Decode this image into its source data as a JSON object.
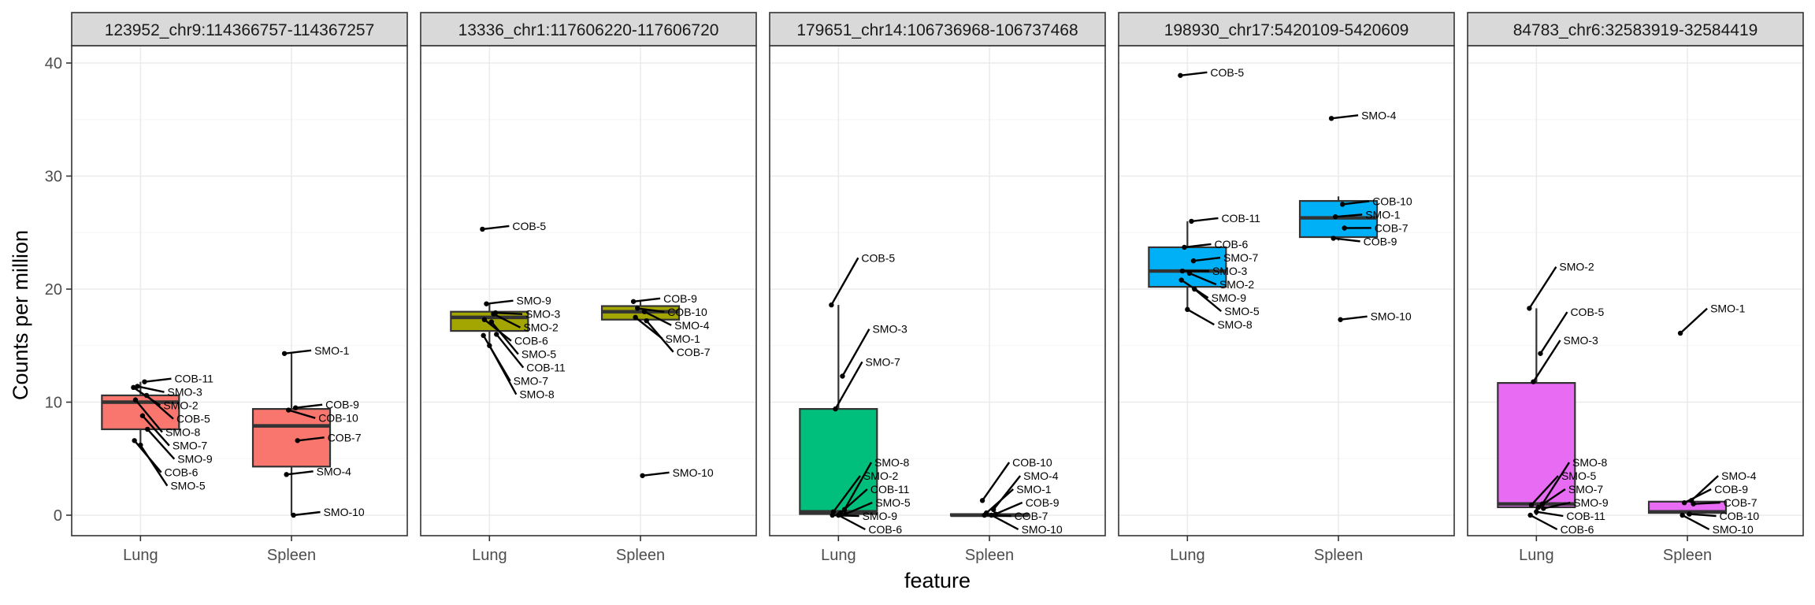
{
  "chart_data": {
    "type": "box",
    "xlabel": "feature",
    "ylabel": "Counts per million",
    "ylim": [
      -1.9,
      42.0
    ],
    "yticks": [
      0,
      10,
      20,
      30,
      40
    ],
    "categories": [
      "Lung",
      "Spleen"
    ],
    "grid": true,
    "panels": [
      {
        "title": "123952_chr9:114366757-114367257",
        "color": "#F8766D",
        "groups": [
          {
            "category": "Lung",
            "box": {
              "q1": 7.6,
              "median": 10.0,
              "q3": 10.6,
              "lower": 6.2,
              "upper": 11.8
            },
            "points": [
              {
                "label": "SMO-2",
                "y": 11.3
              },
              {
                "label": "COB-11",
                "y": 11.8
              },
              {
                "label": "SMO-3",
                "y": 11.4
              },
              {
                "label": "COB-5",
                "y": 10.6
              },
              {
                "label": "SMO-8",
                "y": 10.2
              },
              {
                "label": "SMO-7",
                "y": 8.8
              },
              {
                "label": "SMO-9",
                "y": 7.6
              },
              {
                "label": "COB-6",
                "y": 6.6
              },
              {
                "label": "SMO-5",
                "y": 6.2
              }
            ]
          },
          {
            "category": "Spleen",
            "box": {
              "q1": 4.3,
              "median": 7.9,
              "q3": 9.4,
              "lower": 0.0,
              "upper": 14.3
            },
            "points": [
              {
                "label": "SMO-1",
                "y": 14.3
              },
              {
                "label": "COB-9",
                "y": 9.5
              },
              {
                "label": "COB-10",
                "y": 9.3
              },
              {
                "label": "COB-7",
                "y": 6.6
              },
              {
                "label": "SMO-4",
                "y": 3.6
              },
              {
                "label": "SMO-10",
                "y": 0.0
              }
            ]
          }
        ]
      },
      {
        "title": "13336_chr1:117606220-117606720",
        "color": "#A3A500",
        "groups": [
          {
            "category": "Lung",
            "box": {
              "q1": 16.3,
              "median": 17.5,
              "q3": 18.0,
              "lower": 15.2,
              "upper": 18.7
            },
            "points": [
              {
                "label": "COB-5",
                "y": 25.3
              },
              {
                "label": "SMO-2",
                "y": 17.8
              },
              {
                "label": "SMO-9",
                "y": 18.7
              },
              {
                "label": "SMO-3",
                "y": 17.9
              },
              {
                "label": "COB-6",
                "y": 17.3
              },
              {
                "label": "SMO-5",
                "y": 17.1
              },
              {
                "label": "COB-11",
                "y": 16.0
              },
              {
                "label": "SMO-7",
                "y": 15.9
              },
              {
                "label": "SMO-8",
                "y": 15.0
              }
            ]
          },
          {
            "category": "Spleen",
            "box": {
              "q1": 17.3,
              "median": 18.0,
              "q3": 18.5,
              "lower": 17.1,
              "upper": 18.9
            },
            "points": [
              {
                "label": "COB-9",
                "y": 18.9
              },
              {
                "label": "SMO-4",
                "y": 18.0
              },
              {
                "label": "COB-10",
                "y": 18.3
              },
              {
                "label": "COB-7",
                "y": 17.2
              },
              {
                "label": "SMO-1",
                "y": 17.5
              },
              {
                "label": "SMO-10",
                "y": 3.5
              }
            ]
          }
        ]
      },
      {
        "title": "179651_chr14:106736968-106737468",
        "color": "#00BF7D",
        "groups": [
          {
            "category": "Lung",
            "box": {
              "q1": 0.1,
              "median": 0.3,
              "q3": 9.4,
              "lower": 0.0,
              "upper": 18.6
            },
            "points": [
              {
                "label": "COB-5",
                "y": 18.6
              },
              {
                "label": "SMO-3",
                "y": 12.3
              },
              {
                "label": "SMO-7",
                "y": 9.4
              },
              {
                "label": "SMO-8",
                "y": 0.5
              },
              {
                "label": "SMO-2",
                "y": 0.3
              },
              {
                "label": "COB-11",
                "y": 0.2
              },
              {
                "label": "SMO-5",
                "y": 0.1
              },
              {
                "label": "SMO-9",
                "y": 0.0
              },
              {
                "label": "COB-6",
                "y": 0.0
              }
            ]
          },
          {
            "category": "Spleen",
            "box": {
              "q1": 0.0,
              "median": 0.0,
              "q3": 0.1,
              "lower": 0.0,
              "upper": 0.2
            },
            "points": [
              {
                "label": "COB-10",
                "y": 1.3
              },
              {
                "label": "SMO-4",
                "y": 0.5
              },
              {
                "label": "SMO-1",
                "y": 0.2
              },
              {
                "label": "COB-9",
                "y": 0.1
              },
              {
                "label": "COB-7",
                "y": 0.0
              },
              {
                "label": "SMO-10",
                "y": 0.0
              }
            ]
          }
        ]
      },
      {
        "title": "198930_chr17:5420109-5420609",
        "color": "#00B0F6",
        "groups": [
          {
            "category": "Lung",
            "box": {
              "q1": 20.2,
              "median": 21.6,
              "q3": 23.7,
              "lower": 18.2,
              "upper": 26.0
            },
            "points": [
              {
                "label": "COB-5",
                "y": 38.9
              },
              {
                "label": "COB-11",
                "y": 26.0
              },
              {
                "label": "COB-6",
                "y": 23.7
              },
              {
                "label": "SMO-7",
                "y": 22.5
              },
              {
                "label": "SMO-3",
                "y": 21.6
              },
              {
                "label": "SMO-2",
                "y": 21.4
              },
              {
                "label": "SMO-5",
                "y": 20.0
              },
              {
                "label": "SMO-9",
                "y": 20.8
              },
              {
                "label": "SMO-8",
                "y": 18.2
              }
            ]
          },
          {
            "category": "Spleen",
            "box": {
              "q1": 24.6,
              "median": 26.3,
              "q3": 27.8,
              "lower": 24.3,
              "upper": 28.2
            },
            "points": [
              {
                "label": "SMO-4",
                "y": 35.1
              },
              {
                "label": "COB-10",
                "y": 27.5
              },
              {
                "label": "SMO-1",
                "y": 26.4
              },
              {
                "label": "COB-7",
                "y": 25.4
              },
              {
                "label": "COB-9",
                "y": 24.5
              },
              {
                "label": "SMO-10",
                "y": 17.3
              }
            ]
          }
        ]
      },
      {
        "title": "84783_chr6:32583919-32584419",
        "color": "#E76BF3",
        "groups": [
          {
            "category": "Lung",
            "box": {
              "q1": 0.7,
              "median": 1.0,
              "q3": 11.7,
              "lower": 0.0,
              "upper": 18.3
            },
            "points": [
              {
                "label": "SMO-2",
                "y": 18.3
              },
              {
                "label": "COB-5",
                "y": 14.3
              },
              {
                "label": "SMO-3",
                "y": 11.8
              },
              {
                "label": "SMO-8",
                "y": 1.0
              },
              {
                "label": "SMO-5",
                "y": 0.9
              },
              {
                "label": "SMO-7",
                "y": 0.7
              },
              {
                "label": "SMO-9",
                "y": 0.6
              },
              {
                "label": "COB-6",
                "y": 0.0
              },
              {
                "label": "COB-11",
                "y": 0.3
              }
            ]
          },
          {
            "category": "Spleen",
            "box": {
              "q1": 0.2,
              "median": 0.3,
              "q3": 1.2,
              "lower": 0.0,
              "upper": 1.3
            },
            "points": [
              {
                "label": "SMO-1",
                "y": 16.1
              },
              {
                "label": "SMO-4",
                "y": 1.3
              },
              {
                "label": "COB-9",
                "y": 1.1
              },
              {
                "label": "COB-7",
                "y": 1.0
              },
              {
                "label": "SMO-10",
                "y": 0.0
              },
              {
                "label": "COB-10",
                "y": 0.1
              }
            ]
          }
        ]
      }
    ]
  }
}
